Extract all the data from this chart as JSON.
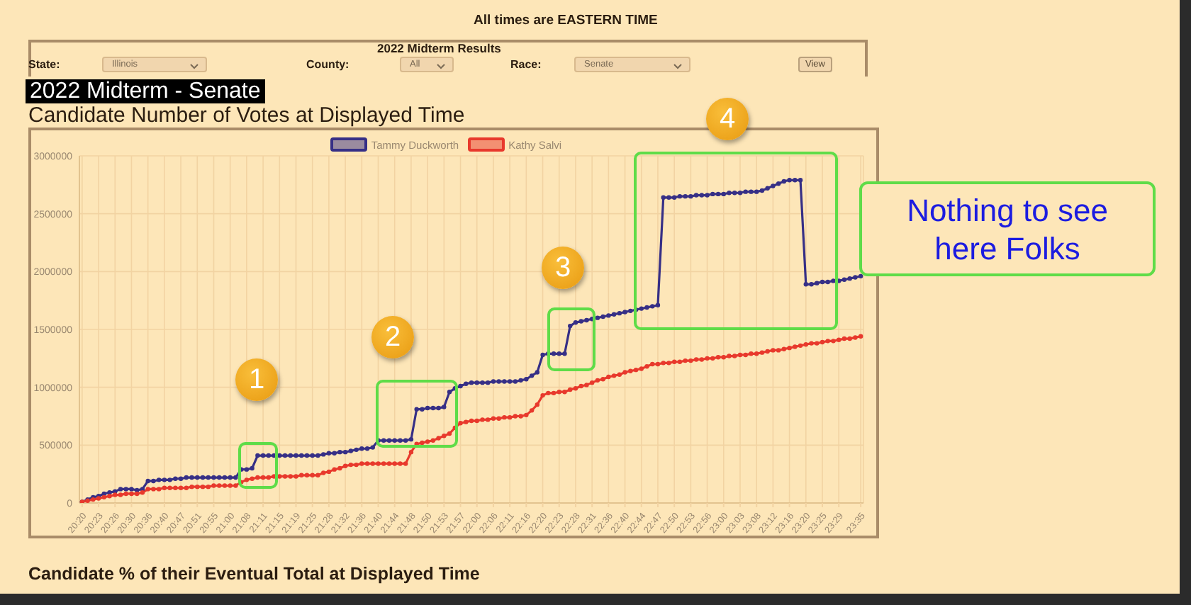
{
  "chart_data": {
    "type": "line",
    "title": "2022 Midterm - Senate",
    "subtitle": "Candidate Number of Votes at Displayed Time",
    "annotations": [
      "All times are EASTERN TIME",
      "2022 Midterm Results",
      "State:",
      "Illinois",
      "County:",
      "All",
      "Race:",
      "Senate",
      "View",
      "1",
      "2",
      "3",
      "4",
      "Nothing to see here Folks",
      "Candidate % of their Eventual Total at Displayed Time"
    ],
    "categories": [
      "20:20",
      null,
      null,
      "20:23",
      null,
      null,
      "20:26",
      null,
      null,
      "20:30",
      null,
      null,
      "20:36",
      null,
      null,
      "20:40",
      null,
      null,
      "20:47",
      null,
      null,
      "20:51",
      null,
      null,
      "20:55",
      null,
      null,
      "21:00",
      null,
      null,
      "21:08",
      null,
      null,
      "21:11",
      null,
      null,
      "21:15",
      null,
      null,
      "21:19",
      null,
      null,
      "21:25",
      null,
      null,
      "21:28",
      null,
      null,
      "21:32",
      null,
      null,
      "21:36",
      null,
      null,
      "21:40",
      null,
      null,
      "21:44",
      null,
      null,
      "21:48",
      null,
      null,
      "21:50",
      null,
      null,
      "21:53",
      null,
      null,
      "21:57",
      null,
      null,
      "22:00",
      null,
      null,
      "22:06",
      null,
      null,
      "22:11",
      null,
      null,
      "22:16",
      null,
      null,
      "22:20",
      null,
      null,
      "22:23",
      null,
      null,
      "22:28",
      null,
      null,
      "22:31",
      null,
      null,
      "22:36",
      null,
      null,
      "22:40",
      null,
      null,
      "22:44",
      null,
      null,
      "22:47",
      null,
      null,
      "22:50",
      null,
      null,
      "22:53",
      null,
      null,
      "22:56",
      null,
      null,
      "23:00",
      null,
      null,
      "23:03",
      null,
      null,
      "23:08",
      null,
      null,
      "23:12",
      null,
      null,
      "23:16",
      null,
      null,
      "23:20",
      null,
      null,
      "23:25",
      null,
      null,
      "23:29",
      null,
      null,
      null,
      "23:35"
    ],
    "series": [
      {
        "name": "Tammy Duckworth",
        "color": "#362f86",
        "values": [
          10000,
          30000,
          50000,
          60000,
          80000,
          90000,
          100000,
          120000,
          120000,
          120000,
          110000,
          120000,
          190000,
          190000,
          200000,
          200000,
          200000,
          210000,
          210000,
          220000,
          220000,
          220000,
          220000,
          220000,
          220000,
          220000,
          220000,
          220000,
          220000,
          290000,
          290000,
          300000,
          410000,
          410000,
          410000,
          410000,
          410000,
          410000,
          410000,
          410000,
          410000,
          410000,
          410000,
          410000,
          420000,
          430000,
          430000,
          440000,
          440000,
          450000,
          460000,
          470000,
          470000,
          480000,
          540000,
          540000,
          540000,
          540000,
          540000,
          540000,
          550000,
          810000,
          810000,
          820000,
          820000,
          820000,
          830000,
          960000,
          990000,
          1010000,
          1030000,
          1040000,
          1040000,
          1040000,
          1040000,
          1050000,
          1050000,
          1050000,
          1050000,
          1050000,
          1060000,
          1070000,
          1100000,
          1130000,
          1280000,
          1290000,
          1290000,
          1290000,
          1290000,
          1530000,
          1560000,
          1570000,
          1580000,
          1590000,
          1600000,
          1610000,
          1620000,
          1630000,
          1640000,
          1650000,
          1660000,
          1670000,
          1680000,
          1690000,
          1700000,
          1710000,
          2640000,
          2640000,
          2640000,
          2650000,
          2650000,
          2650000,
          2660000,
          2660000,
          2660000,
          2670000,
          2670000,
          2670000,
          2680000,
          2680000,
          2680000,
          2690000,
          2690000,
          2690000,
          2700000,
          2720000,
          2740000,
          2760000,
          2780000,
          2790000,
          2790000,
          2790000,
          1890000,
          1890000,
          1900000,
          1910000,
          1910000,
          1920000,
          1920000,
          1930000,
          1940000,
          1950000,
          1960000
        ]
      },
      {
        "name": "Kathy Salvi",
        "color": "#e8392c",
        "values": [
          10000,
          20000,
          30000,
          40000,
          50000,
          60000,
          70000,
          70000,
          80000,
          80000,
          80000,
          90000,
          120000,
          120000,
          120000,
          130000,
          130000,
          130000,
          130000,
          130000,
          140000,
          140000,
          140000,
          140000,
          150000,
          150000,
          150000,
          150000,
          150000,
          180000,
          200000,
          210000,
          220000,
          220000,
          220000,
          230000,
          230000,
          230000,
          230000,
          230000,
          240000,
          240000,
          240000,
          240000,
          260000,
          270000,
          290000,
          300000,
          320000,
          330000,
          330000,
          340000,
          340000,
          340000,
          340000,
          340000,
          340000,
          340000,
          340000,
          340000,
          440000,
          510000,
          520000,
          530000,
          540000,
          560000,
          580000,
          600000,
          650000,
          690000,
          700000,
          710000,
          710000,
          720000,
          720000,
          730000,
          730000,
          740000,
          740000,
          750000,
          750000,
          760000,
          800000,
          850000,
          930000,
          950000,
          950000,
          960000,
          960000,
          980000,
          990000,
          1010000,
          1020000,
          1040000,
          1060000,
          1070000,
          1090000,
          1100000,
          1110000,
          1130000,
          1140000,
          1150000,
          1160000,
          1180000,
          1200000,
          1200000,
          1210000,
          1210000,
          1220000,
          1220000,
          1230000,
          1230000,
          1240000,
          1240000,
          1250000,
          1250000,
          1260000,
          1260000,
          1270000,
          1270000,
          1280000,
          1280000,
          1290000,
          1290000,
          1300000,
          1310000,
          1320000,
          1320000,
          1330000,
          1340000,
          1350000,
          1360000,
          1370000,
          1380000,
          1380000,
          1390000,
          1400000,
          1400000,
          1410000,
          1420000,
          1420000,
          1430000,
          1440000
        ]
      }
    ],
    "ylim": [
      0,
      3000000
    ],
    "yticks": [
      0,
      500000,
      1000000,
      1500000,
      2000000,
      2500000,
      3000000
    ],
    "grid": true,
    "legend": "top",
    "marker": "circle",
    "line_style": "solid"
  }
}
